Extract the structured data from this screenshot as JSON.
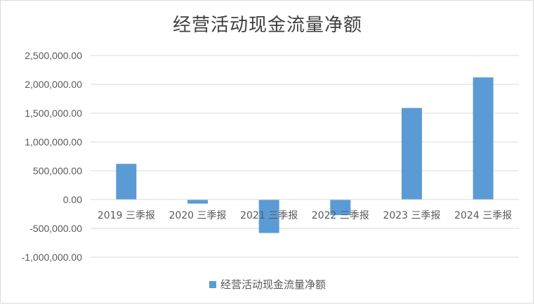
{
  "chart_data": {
    "type": "bar",
    "title": "经营活动现金流量净额",
    "categories": [
      "2019 三季报",
      "2020 三季报",
      "2021 三季报",
      "2022 三季报",
      "2023 三季报",
      "2024 三季报"
    ],
    "series": [
      {
        "name": "经营活动现金流量净额",
        "color": "#5b9bd5",
        "values": [
          620000,
          -70000,
          -580000,
          -270000,
          1590000,
          2120000
        ]
      }
    ],
    "y_ticks": [
      "2,500,000.00",
      "2,000,000.00",
      "1,500,000.00",
      "1,000,000.00",
      "500,000.00",
      "0.00",
      "-500,000.00",
      "-1,000,000.00"
    ],
    "y_tick_values": [
      2500000,
      2000000,
      1500000,
      1000000,
      500000,
      0,
      -500000,
      -1000000
    ],
    "ylim": [
      -1000000,
      2500000
    ],
    "grid": true,
    "legend": "bottom",
    "xlabel": "",
    "ylabel": ""
  }
}
